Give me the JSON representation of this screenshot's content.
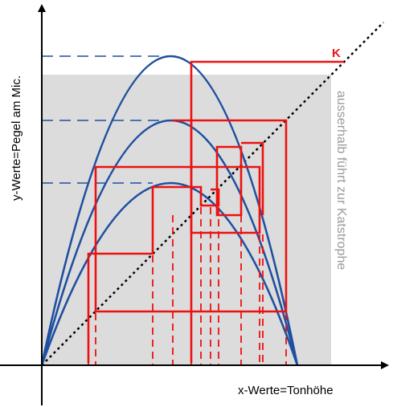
{
  "labels": {
    "x_axis": "x-Werte=Tonhöhe",
    "y_axis": "y-Werte=Pegel am Mic.",
    "region_note": "ausserhalb führt zur Katstrophe",
    "corner_marker": "K"
  },
  "colors": {
    "curves": "#1f4fa0",
    "cobweb": "#ee1111",
    "region": "#dcdcdc",
    "diagonal": "#000000",
    "axes": "#000000"
  }
}
